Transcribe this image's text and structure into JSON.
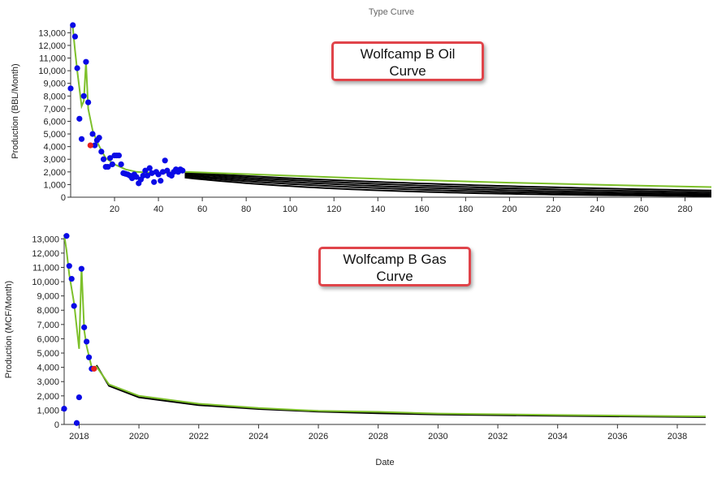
{
  "page": {
    "title": "Type Curve"
  },
  "callouts": {
    "oil": {
      "line1": "Wolfcamp B Oil",
      "line2": "Curve"
    },
    "gas": {
      "line1": "Wolfcamp B Gas",
      "line2": "Curve"
    }
  },
  "colors": {
    "points": "#0a0ae6",
    "highlight_point": "#e62020",
    "fit_line": "#7dc02a",
    "forecast": "#000000"
  },
  "chart_data": [
    {
      "type": "scatter",
      "title": "",
      "xlabel": "",
      "ylabel": "Production (BBL/Month)",
      "xlim": [
        0,
        292
      ],
      "ylim": [
        0,
        13600
      ],
      "x_ticks": [
        20,
        40,
        60,
        80,
        100,
        120,
        140,
        160,
        180,
        200,
        220,
        240,
        260,
        280
      ],
      "y_ticks": [
        0,
        1000,
        2000,
        3000,
        4000,
        5000,
        6000,
        7000,
        8000,
        9000,
        10000,
        11000,
        12000,
        13000
      ],
      "grid": false,
      "points": [
        [
          0,
          8600
        ],
        [
          1,
          13600
        ],
        [
          2,
          12700
        ],
        [
          3,
          10200
        ],
        [
          4,
          6200
        ],
        [
          5,
          4600
        ],
        [
          6,
          8000
        ],
        [
          7,
          10700
        ],
        [
          8,
          7500
        ],
        [
          10,
          5000
        ],
        [
          11,
          4100
        ],
        [
          12,
          4500
        ],
        [
          13,
          4700
        ],
        [
          14,
          3600
        ],
        [
          15,
          3000
        ],
        [
          16,
          2400
        ],
        [
          17,
          2400
        ],
        [
          18,
          3100
        ],
        [
          19,
          2600
        ],
        [
          20,
          3300
        ],
        [
          21,
          3300
        ],
        [
          22,
          3300
        ],
        [
          23,
          2600
        ],
        [
          24,
          1900
        ],
        [
          25,
          1850
        ],
        [
          26,
          1800
        ],
        [
          27,
          1700
        ],
        [
          28,
          1500
        ],
        [
          29,
          1800
        ],
        [
          30,
          1600
        ],
        [
          31,
          1100
        ],
        [
          32,
          1400
        ],
        [
          33,
          1700
        ],
        [
          34,
          2100
        ],
        [
          35,
          1700
        ],
        [
          36,
          2300
        ],
        [
          37,
          1900
        ],
        [
          38,
          1200
        ],
        [
          39,
          2000
        ],
        [
          40,
          1800
        ],
        [
          41,
          1300
        ],
        [
          42,
          2000
        ],
        [
          43,
          2900
        ],
        [
          44,
          2100
        ],
        [
          45,
          1800
        ],
        [
          46,
          1700
        ],
        [
          47,
          2000
        ],
        [
          48,
          2200
        ],
        [
          49,
          2000
        ],
        [
          50,
          2200
        ],
        [
          51,
          2100
        ]
      ],
      "highlight_point": [
        9,
        4100
      ],
      "fit_line": [
        [
          1,
          13400
        ],
        [
          2,
          11600
        ],
        [
          3,
          10000
        ],
        [
          4,
          8600
        ],
        [
          5,
          7200
        ],
        [
          6,
          7600
        ],
        [
          7,
          10700
        ],
        [
          8,
          7000
        ],
        [
          10,
          5300
        ],
        [
          12,
          4400
        ],
        [
          14,
          3700
        ],
        [
          16,
          3100
        ],
        [
          20,
          2600
        ],
        [
          25,
          2200
        ],
        [
          30,
          2000
        ],
        [
          40,
          1900
        ],
        [
          52,
          2000
        ],
        [
          100,
          1700
        ],
        [
          150,
          1400
        ],
        [
          200,
          1150
        ],
        [
          250,
          950
        ],
        [
          292,
          800
        ]
      ],
      "forecast_curves": [
        {
          "start": 1950,
          "end": 530
        },
        {
          "start": 1850,
          "end": 390
        },
        {
          "start": 1750,
          "end": 270
        },
        {
          "start": 1650,
          "end": 170
        },
        {
          "start": 1550,
          "end": 90
        }
      ]
    },
    {
      "type": "scatter",
      "title": "",
      "xlabel": "Date",
      "ylabel": "Production (MCF/Month)",
      "xlim": [
        2017.5,
        2038.95
      ],
      "ylim": [
        0,
        13300
      ],
      "x_ticks": [
        2018,
        2020,
        2022,
        2024,
        2026,
        2028,
        2030,
        2032,
        2034,
        2036,
        2038
      ],
      "y_ticks": [
        0,
        1000,
        2000,
        3000,
        4000,
        5000,
        6000,
        7000,
        8000,
        9000,
        10000,
        11000,
        12000,
        13000
      ],
      "grid": false,
      "points": [
        [
          2017.5,
          1100
        ],
        [
          2017.58,
          13200
        ],
        [
          2017.67,
          11100
        ],
        [
          2017.75,
          10200
        ],
        [
          2017.83,
          8300
        ],
        [
          2017.92,
          100
        ],
        [
          2018.0,
          1900
        ],
        [
          2018.08,
          10900
        ],
        [
          2018.17,
          6800
        ],
        [
          2018.25,
          5800
        ],
        [
          2018.33,
          4700
        ],
        [
          2018.42,
          3900
        ]
      ],
      "highlight_point": [
        2018.5,
        3900
      ],
      "fit_line": [
        [
          2017.5,
          13300
        ],
        [
          2017.58,
          12200
        ],
        [
          2017.67,
          10500
        ],
        [
          2017.83,
          8500
        ],
        [
          2018.0,
          5300
        ],
        [
          2018.08,
          11000
        ],
        [
          2018.17,
          6600
        ],
        [
          2018.25,
          5500
        ],
        [
          2018.42,
          4000
        ],
        [
          2018.58,
          4050
        ],
        [
          2019,
          2800
        ],
        [
          2020,
          2000
        ],
        [
          2022,
          1450
        ],
        [
          2024,
          1150
        ],
        [
          2026,
          950
        ],
        [
          2028,
          880
        ],
        [
          2030,
          760
        ],
        [
          2034,
          660
        ],
        [
          2038.95,
          560
        ]
      ],
      "forecast_curve": [
        [
          2018.58,
          4150
        ],
        [
          2019,
          2700
        ],
        [
          2020,
          1900
        ],
        [
          2022,
          1350
        ],
        [
          2024,
          1080
        ],
        [
          2026,
          900
        ],
        [
          2028,
          780
        ],
        [
          2030,
          700
        ],
        [
          2034,
          600
        ],
        [
          2038.95,
          510
        ]
      ]
    }
  ]
}
